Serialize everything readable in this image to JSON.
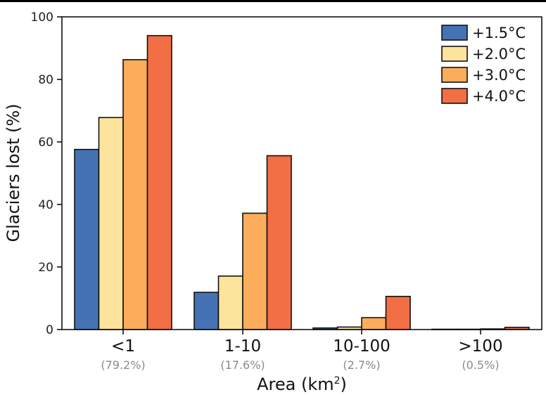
{
  "chart_data": {
    "type": "bar",
    "title": "",
    "xlabel": "Area (km",
    "xlabel_sup": "2",
    "xlabel_close": ")",
    "ylabel": "Glaciers lost (%)",
    "ylim": [
      0,
      100
    ],
    "yticks": [
      "0",
      "20",
      "40",
      "60",
      "80",
      "100"
    ],
    "categories": [
      "<1",
      "1-10",
      "10-100",
      ">100"
    ],
    "category_shares": [
      "(79.2%)",
      "(17.6%)",
      "(2.7%)",
      "(0.5%)"
    ],
    "series": [
      {
        "name": "+1.5°C",
        "color": "#4472b3",
        "values": [
          57.6,
          11.9,
          0.5,
          0.1
        ]
      },
      {
        "name": "+2.0°C",
        "color": "#fde49c",
        "values": [
          67.8,
          17.1,
          0.8,
          0.1
        ]
      },
      {
        "name": "+3.0°C",
        "color": "#fbad5c",
        "values": [
          86.3,
          37.2,
          3.8,
          0.2
        ]
      },
      {
        "name": "+4.0°C",
        "color": "#f26e44",
        "values": [
          94.0,
          55.6,
          10.6,
          0.7
        ]
      }
    ],
    "legend_position": "top-right"
  }
}
